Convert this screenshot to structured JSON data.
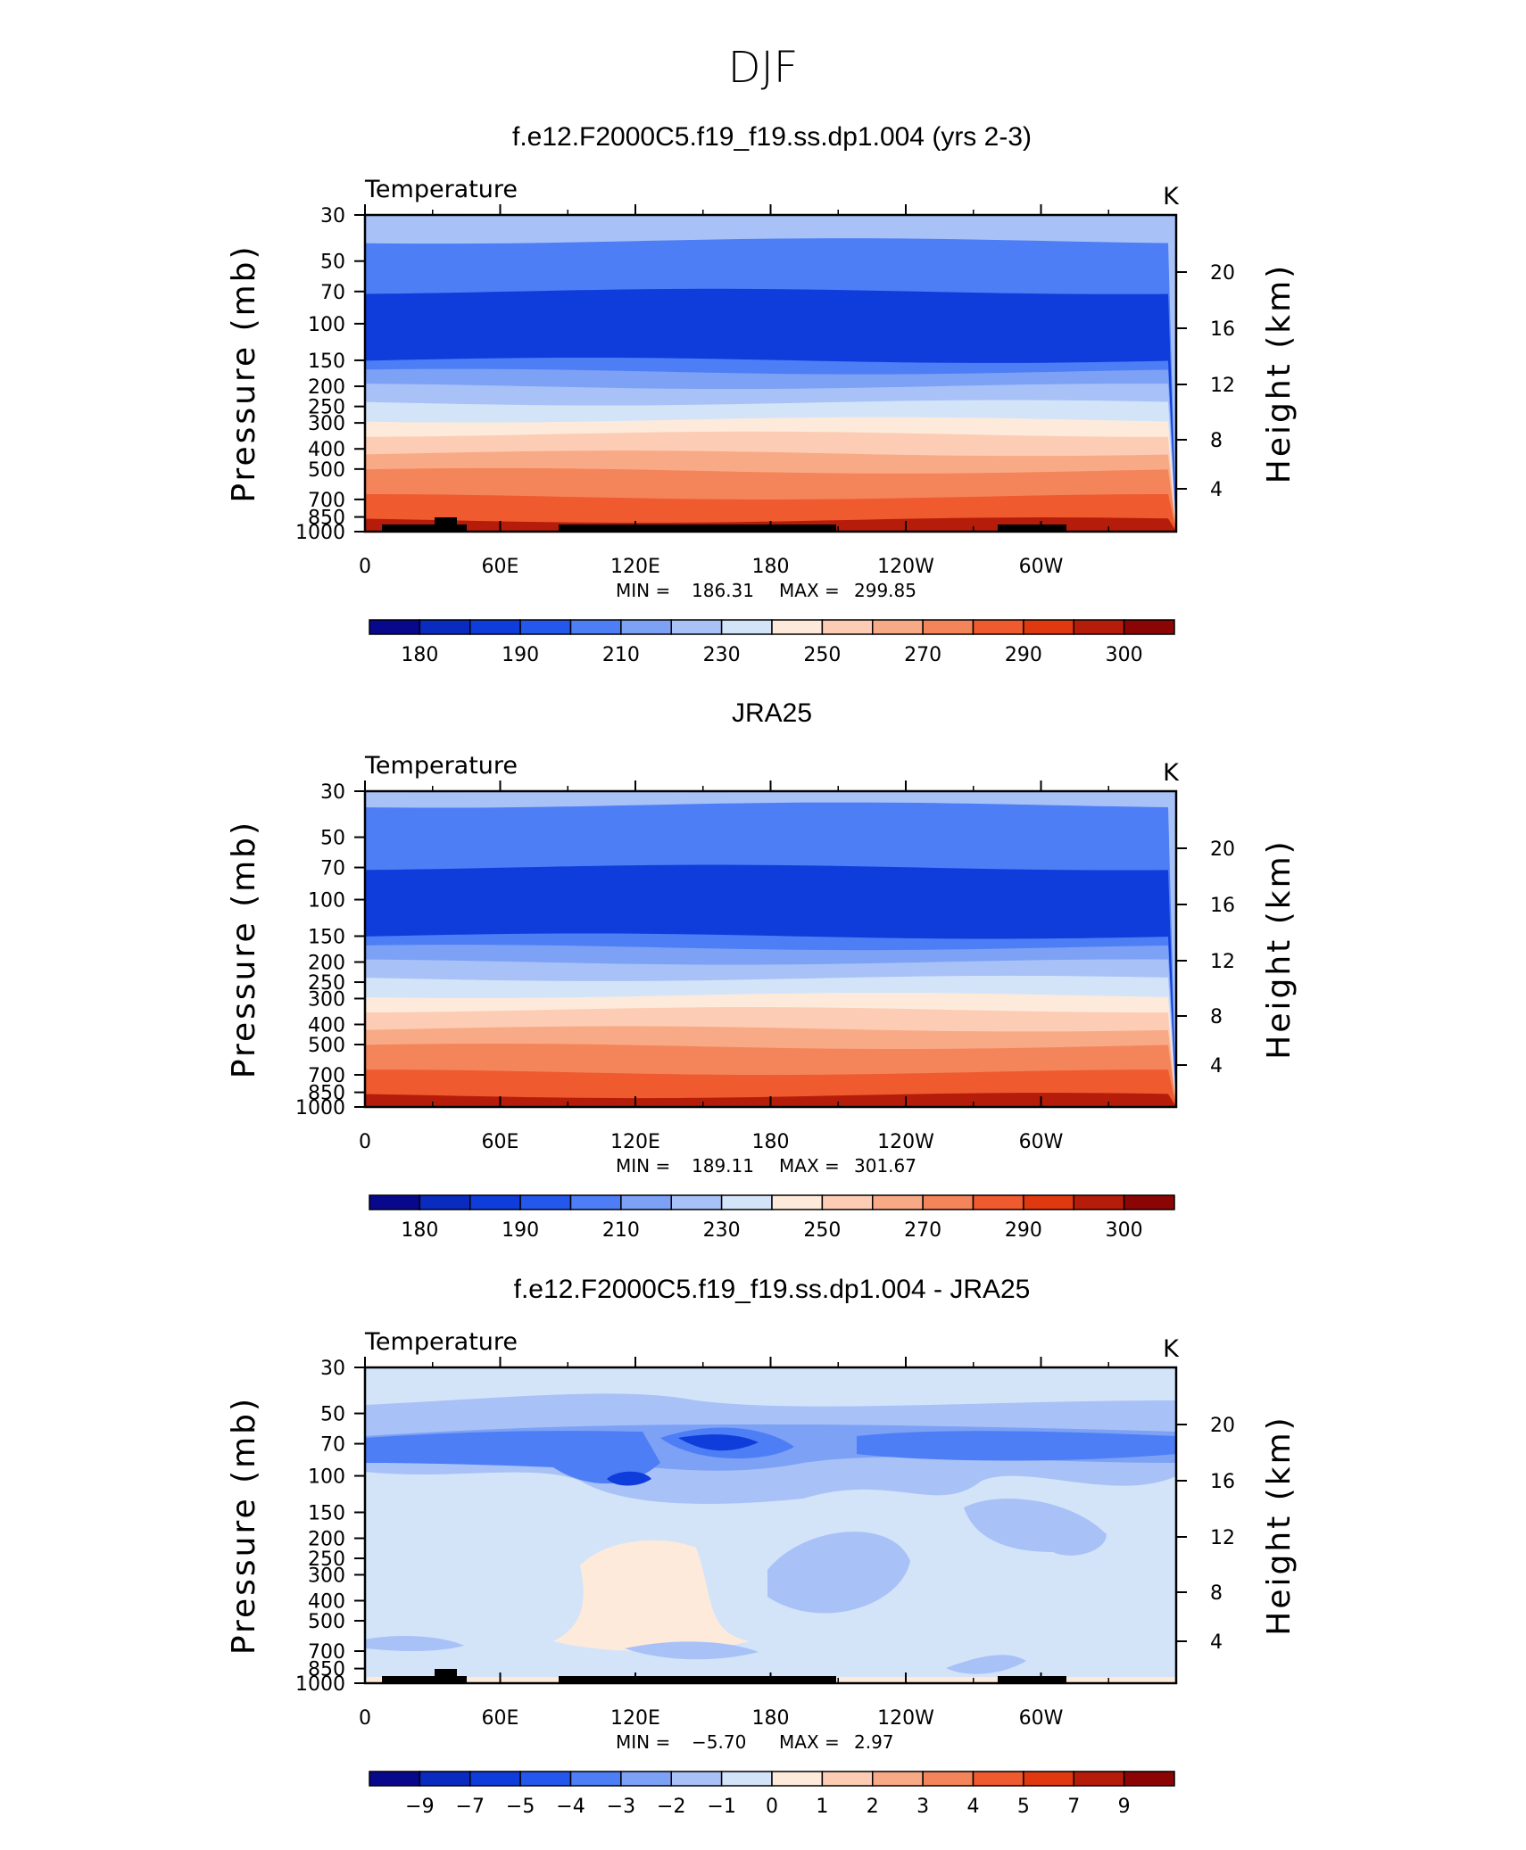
{
  "figure_title": "DJF",
  "colors": {
    "palette_18": [
      "#08088c",
      "#0a2bbf",
      "#0f3ddb",
      "#2458ec",
      "#4d7ef5",
      "#7da1f5",
      "#a8c2f7",
      "#d3e4f9",
      "#feeadb",
      "#fccdb4",
      "#f8aa86",
      "#f4845a",
      "#ef5a2f",
      "#e0390f",
      "#b51c0a",
      "#8c0505"
    ]
  },
  "chart_data": [
    {
      "type": "heatmap",
      "title": "f.e12.F2000C5.f19_f19.ss.dp1.004 (yrs 2-3)",
      "left_label": "Temperature",
      "units": "K",
      "ylabel": "Pressure (mb)",
      "y2label": "Height (km)",
      "x_ticks": [
        "0",
        "60E",
        "120E",
        "180",
        "120W",
        "60W"
      ],
      "y_ticks": [
        "30",
        "50",
        "70",
        "100",
        "150",
        "200",
        "250",
        "300",
        "400",
        "500",
        "700",
        "850",
        "1000"
      ],
      "y2_ticks": [
        "20",
        "16",
        "12",
        "8",
        "4"
      ],
      "min_label": "MIN =",
      "min_value": "186.31",
      "max_label": "MAX =",
      "max_value": "299.85",
      "colorbar_labels": [
        "180",
        "190",
        "210",
        "230",
        "250",
        "270",
        "290",
        "300"
      ],
      "levels": [
        [
          30,
          230
        ],
        [
          40,
          210
        ],
        [
          70,
          190
        ],
        [
          150,
          210
        ],
        [
          170,
          220
        ],
        [
          200,
          230
        ],
        [
          240,
          240
        ],
        [
          290,
          250
        ],
        [
          340,
          260
        ],
        [
          420,
          270
        ],
        [
          510,
          280
        ],
        [
          680,
          290
        ],
        [
          880,
          300
        ]
      ],
      "feature": "cold-core minimum (<190 K) near 100 mb between 120E and 150W"
    },
    {
      "type": "heatmap",
      "title": "JRA25",
      "left_label": "Temperature",
      "units": "K",
      "ylabel": "Pressure (mb)",
      "y2label": "Height (km)",
      "x_ticks": [
        "0",
        "60E",
        "120E",
        "180",
        "120W",
        "60W"
      ],
      "y_ticks": [
        "30",
        "50",
        "70",
        "100",
        "150",
        "200",
        "250",
        "300",
        "400",
        "500",
        "700",
        "850",
        "1000"
      ],
      "y2_ticks": [
        "20",
        "16",
        "12",
        "8",
        "4"
      ],
      "min_label": "MIN =",
      "min_value": "189.11",
      "max_label": "MAX =",
      "max_value": "301.67",
      "colorbar_labels": [
        "180",
        "190",
        "210",
        "230",
        "250",
        "270",
        "290",
        "300"
      ],
      "levels": [
        [
          30,
          230
        ],
        [
          35,
          210
        ],
        [
          70,
          190
        ],
        [
          150,
          210
        ],
        [
          170,
          220
        ],
        [
          200,
          230
        ],
        [
          240,
          240
        ],
        [
          290,
          250
        ],
        [
          340,
          260
        ],
        [
          420,
          270
        ],
        [
          510,
          280
        ],
        [
          680,
          290
        ],
        [
          880,
          300
        ]
      ],
      "feature": "weak cold minimum near 100 mb around 150E-170W"
    },
    {
      "type": "heatmap",
      "title": "f.e12.F2000C5.f19_f19.ss.dp1.004 - JRA25",
      "left_label": "Temperature",
      "units": "K",
      "ylabel": "Pressure (mb)",
      "y2label": "Height (km)",
      "x_ticks": [
        "0",
        "60E",
        "120E",
        "180",
        "120W",
        "60W"
      ],
      "y_ticks": [
        "30",
        "50",
        "70",
        "100",
        "150",
        "200",
        "250",
        "300",
        "400",
        "500",
        "700",
        "850",
        "1000"
      ],
      "y2_ticks": [
        "20",
        "16",
        "12",
        "8",
        "4"
      ],
      "min_label": "MIN =",
      "min_value": "−5.70",
      "max_label": "MAX =",
      "max_value": "2.97",
      "colorbar_labels": [
        "−9",
        "−7",
        "−5",
        "−4",
        "−3",
        "−2",
        "−1",
        "0",
        "1",
        "2",
        "3",
        "4",
        "5",
        "7",
        "9"
      ],
      "feature": "negative bias band (−1 to −4 K) between 50 and 150 mb, minimum near 180 at 70 mb; small positive bias 250-500 mb near 120E-150E"
    }
  ]
}
